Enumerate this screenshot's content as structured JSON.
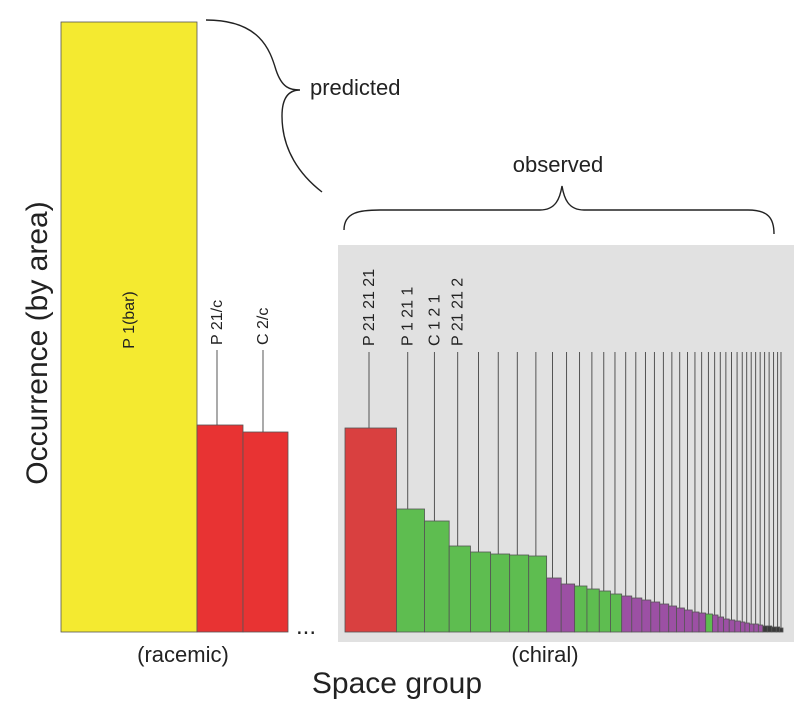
{
  "chart_data": {
    "type": "bar",
    "ylabel": "Occurrence (by area)",
    "xlabel": "Space group",
    "colors": {
      "yellow": "#f4ea30",
      "red": "#e83333",
      "red_chiral": "#d94040",
      "green": "#5ebd50",
      "purple": "#9c50a4",
      "panel": "#e1e1e1",
      "thin_line": "#3a3a3a"
    },
    "racemic": {
      "group_label": "(racemic)",
      "brace_label": "predicted",
      "ellipsis": "...",
      "bars": [
        {
          "label": "P 1(bar)",
          "value": 610,
          "color": "yellow"
        },
        {
          "label": "P 21/c",
          "value": 207,
          "color": "red"
        },
        {
          "label": "C 2/c",
          "value": 200,
          "color": "red"
        }
      ]
    },
    "chiral": {
      "group_label": "(chiral)",
      "brace_label": "observed",
      "labels": [
        "P 21 21 21",
        "P 1 21 1",
        "C 1 2 1",
        "P 21 21 2"
      ],
      "bars": [
        {
          "value": 204,
          "color": "red_chiral"
        },
        {
          "value": 123,
          "color": "green"
        },
        {
          "value": 111,
          "color": "green"
        },
        {
          "value": 86,
          "color": "green"
        },
        {
          "value": 80,
          "color": "green"
        },
        {
          "value": 78,
          "color": "green"
        },
        {
          "value": 77,
          "color": "green"
        },
        {
          "value": 76,
          "color": "green"
        },
        {
          "value": 54,
          "color": "purple"
        },
        {
          "value": 48,
          "color": "purple"
        },
        {
          "value": 46,
          "color": "green"
        },
        {
          "value": 43,
          "color": "green"
        },
        {
          "value": 41,
          "color": "green"
        },
        {
          "value": 38,
          "color": "green"
        },
        {
          "value": 36,
          "color": "purple"
        },
        {
          "value": 34,
          "color": "purple"
        },
        {
          "value": 32,
          "color": "purple"
        },
        {
          "value": 30,
          "color": "purple"
        },
        {
          "value": 28,
          "color": "purple"
        },
        {
          "value": 26,
          "color": "purple"
        },
        {
          "value": 24,
          "color": "purple"
        },
        {
          "value": 22,
          "color": "purple"
        },
        {
          "value": 20,
          "color": "purple"
        },
        {
          "value": 19,
          "color": "purple"
        },
        {
          "value": 18,
          "color": "green"
        },
        {
          "value": 17,
          "color": "purple"
        },
        {
          "value": 15,
          "color": "purple"
        },
        {
          "value": 13,
          "color": "purple"
        },
        {
          "value": 12,
          "color": "purple"
        },
        {
          "value": 11,
          "color": "purple"
        },
        {
          "value": 10,
          "color": "purple"
        },
        {
          "value": 9,
          "color": "purple"
        },
        {
          "value": 8,
          "color": "purple"
        },
        {
          "value": 8,
          "color": "purple"
        },
        {
          "value": 7,
          "color": "purple"
        },
        {
          "value": 6,
          "color": "thin_line"
        },
        {
          "value": 6,
          "color": "thin_line"
        },
        {
          "value": 5,
          "color": "thin_line"
        },
        {
          "value": 5,
          "color": "thin_line"
        },
        {
          "value": 4,
          "color": "thin_line"
        }
      ]
    }
  }
}
